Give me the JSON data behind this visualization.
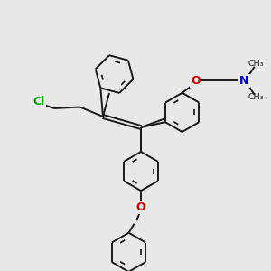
{
  "bg_color": "#e8e8e8",
  "bond_color": "#1a1a1a",
  "cl_color": "#00aa00",
  "o_color": "#cc0000",
  "n_color": "#0000cc",
  "lw": 1.4,
  "figsize": [
    3.0,
    3.0
  ],
  "dpi": 100,
  "xlim": [
    0,
    10
  ],
  "ylim": [
    0,
    10
  ]
}
